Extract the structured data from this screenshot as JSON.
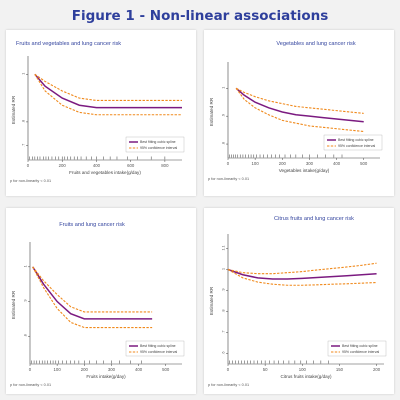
{
  "figure_title": "Figure 1 - Non-linear associations",
  "colors": {
    "fit": "#7b1a80",
    "ci": "#f08a1d",
    "title": "#2e3f9c"
  },
  "chart_data": [
    {
      "type": "line",
      "title": "Fruits and vegetables and lung cancer risk",
      "xlabel": "Fruits and vegetables intake(g/day)",
      "ylabel": "Estimated RR",
      "xlim": [
        0,
        900
      ],
      "ylim": [
        0.64,
        1.06
      ],
      "xticks": [
        "0",
        "200",
        "400",
        "600",
        "800"
      ],
      "xtick_values": [
        0,
        200,
        400,
        600,
        800
      ],
      "yticks": [
        "1",
        ".8",
        ".7"
      ],
      "ytick_values": [
        1.0,
        0.8,
        0.7
      ],
      "legend_position": "bottom-right",
      "p_nonlinearity": "p for non-linearity < 0.01",
      "series": [
        {
          "name": "Best fitting cubic spline",
          "role": "fit",
          "x": [
            40,
            100,
            200,
            300,
            400,
            500,
            600,
            700,
            800,
            900
          ],
          "y": [
            1.0,
            0.95,
            0.9,
            0.87,
            0.86,
            0.86,
            0.86,
            0.86,
            0.86,
            0.86
          ]
        },
        {
          "name": "95% confidence interval",
          "role": "ci",
          "x": [
            40,
            100,
            200,
            300,
            400,
            500,
            600,
            700,
            800,
            900
          ],
          "y": [
            1.0,
            0.97,
            0.93,
            0.9,
            0.89,
            0.89,
            0.89,
            0.89,
            0.89,
            0.89
          ]
        },
        {
          "name": "",
          "role": "ci",
          "x": [
            40,
            100,
            200,
            300,
            400,
            500,
            600,
            700,
            800,
            900
          ],
          "y": [
            1.0,
            0.93,
            0.87,
            0.84,
            0.83,
            0.83,
            0.83,
            0.83,
            0.83,
            0.83
          ]
        }
      ],
      "rug": [
        10,
        25,
        40,
        55,
        70,
        90,
        105,
        120,
        140,
        160,
        180,
        200,
        215,
        230,
        250,
        270,
        290,
        310,
        340,
        370,
        400,
        440,
        480,
        520,
        580,
        640,
        720,
        800
      ]
    },
    {
      "type": "line",
      "title": "Vegetables and lung cancer risk",
      "xlabel": "Vegetables intake(g/day)",
      "ylabel": "Estimated RR",
      "xlim": [
        0,
        560
      ],
      "ylim": [
        0.75,
        1.08
      ],
      "xticks": [
        "0",
        "100",
        "200",
        "300",
        "400",
        "500"
      ],
      "xtick_values": [
        0,
        100,
        200,
        300,
        400,
        500
      ],
      "yticks": [
        "1",
        ".9",
        ".8"
      ],
      "ytick_values": [
        1.0,
        0.9,
        0.8
      ],
      "legend_position": "bottom-right",
      "p_nonlinearity": "p for non-linearity < 0.01",
      "series": [
        {
          "name": "Best fitting cubic spline",
          "role": "fit",
          "x": [
            30,
            60,
            100,
            150,
            200,
            250,
            300,
            350,
            400,
            450,
            500
          ],
          "y": [
            1.0,
            0.975,
            0.95,
            0.93,
            0.915,
            0.905,
            0.9,
            0.895,
            0.89,
            0.885,
            0.88
          ]
        },
        {
          "name": "95% confidence interval",
          "role": "ci",
          "x": [
            30,
            60,
            100,
            150,
            200,
            250,
            300,
            350,
            400,
            450,
            500
          ],
          "y": [
            1.0,
            0.985,
            0.97,
            0.955,
            0.945,
            0.935,
            0.93,
            0.925,
            0.92,
            0.915,
            0.91
          ]
        },
        {
          "name": "",
          "role": "ci",
          "x": [
            30,
            60,
            100,
            150,
            200,
            250,
            300,
            350,
            400,
            450,
            500
          ],
          "y": [
            1.0,
            0.96,
            0.93,
            0.905,
            0.885,
            0.875,
            0.865,
            0.86,
            0.855,
            0.85,
            0.845
          ]
        }
      ],
      "rug": [
        5,
        12,
        20,
        28,
        36,
        45,
        55,
        65,
        75,
        85,
        95,
        105,
        118,
        130,
        145,
        160,
        175,
        190,
        210,
        230,
        250,
        275,
        300,
        330,
        360,
        390,
        420
      ]
    },
    {
      "type": "line",
      "title": "Fruits and lung cancer risk",
      "xlabel": "Fruits intake(g/day)",
      "ylabel": "Estimated RR",
      "xlim": [
        0,
        560
      ],
      "ylim": [
        0.72,
        1.06
      ],
      "xticks": [
        "0",
        "100",
        "200",
        "300",
        "400",
        "500"
      ],
      "xtick_values": [
        0,
        100,
        200,
        300,
        400,
        500
      ],
      "yticks": [
        "1",
        ".9",
        ".8"
      ],
      "ytick_values": [
        1.0,
        0.9,
        0.8
      ],
      "legend_position": "bottom-right",
      "p_nonlinearity": "p for non-linearity < 0.01",
      "series": [
        {
          "name": "Best fitting cubic spline",
          "role": "fit",
          "x": [
            10,
            50,
            100,
            150,
            200,
            250,
            300,
            350,
            400,
            450
          ],
          "y": [
            1.0,
            0.95,
            0.9,
            0.865,
            0.85,
            0.85,
            0.85,
            0.85,
            0.85,
            0.85
          ]
        },
        {
          "name": "95% confidence interval",
          "role": "ci",
          "x": [
            10,
            50,
            100,
            150,
            200,
            250,
            300,
            350,
            400,
            450
          ],
          "y": [
            1.0,
            0.96,
            0.92,
            0.885,
            0.87,
            0.87,
            0.87,
            0.87,
            0.87,
            0.87
          ]
        },
        {
          "name": "",
          "role": "ci",
          "x": [
            10,
            50,
            100,
            150,
            200,
            250,
            300,
            350,
            400,
            450
          ],
          "y": [
            1.0,
            0.94,
            0.88,
            0.84,
            0.825,
            0.825,
            0.825,
            0.825,
            0.825,
            0.825
          ]
        }
      ],
      "rug": [
        5,
        15,
        25,
        35,
        45,
        55,
        65,
        75,
        85,
        95,
        105,
        120,
        135,
        150,
        165,
        180,
        200,
        220,
        245,
        270,
        300,
        330,
        370,
        410
      ]
    },
    {
      "type": "line",
      "title": "Citrus fruits and lung cancer risk",
      "xlabel": "Citrus fruits intake(g/day)",
      "ylabel": "Estimated RR",
      "xlim": [
        0,
        210
      ],
      "ylim": [
        0.55,
        1.15
      ],
      "xticks": [
        "0",
        "50",
        "100",
        "150",
        "200"
      ],
      "xtick_values": [
        0,
        50,
        100,
        150,
        200
      ],
      "yticks": [
        "1.1",
        "1",
        ".9",
        ".8",
        ".7",
        ".6"
      ],
      "ytick_values": [
        1.1,
        1.0,
        0.9,
        0.8,
        0.7,
        0.6
      ],
      "legend_position": "bottom-right",
      "p_nonlinearity": "p for non-linearity < 0.01",
      "series": [
        {
          "name": "Best fitting cubic spline",
          "role": "fit",
          "x": [
            0,
            20,
            40,
            60,
            80,
            100,
            120,
            140,
            160,
            180,
            200
          ],
          "y": [
            1.0,
            0.975,
            0.96,
            0.955,
            0.955,
            0.958,
            0.962,
            0.966,
            0.97,
            0.975,
            0.98
          ]
        },
        {
          "name": "95% confidence interval",
          "role": "ci",
          "x": [
            0,
            20,
            40,
            60,
            80,
            100,
            120,
            140,
            160,
            180,
            200
          ],
          "y": [
            1.0,
            0.985,
            0.98,
            0.98,
            0.985,
            0.99,
            0.998,
            1.005,
            1.012,
            1.02,
            1.03
          ]
        },
        {
          "name": "",
          "role": "ci",
          "x": [
            0,
            20,
            40,
            60,
            80,
            100,
            120,
            140,
            160,
            180,
            200
          ],
          "y": [
            1.0,
            0.96,
            0.94,
            0.93,
            0.925,
            0.925,
            0.927,
            0.93,
            0.932,
            0.935,
            0.938
          ]
        }
      ],
      "rug": [
        2,
        6,
        10,
        14,
        18,
        22,
        26,
        30,
        35,
        40,
        45,
        50,
        56,
        62,
        68,
        75,
        82,
        90,
        98,
        106,
        115,
        125,
        135
      ]
    }
  ]
}
